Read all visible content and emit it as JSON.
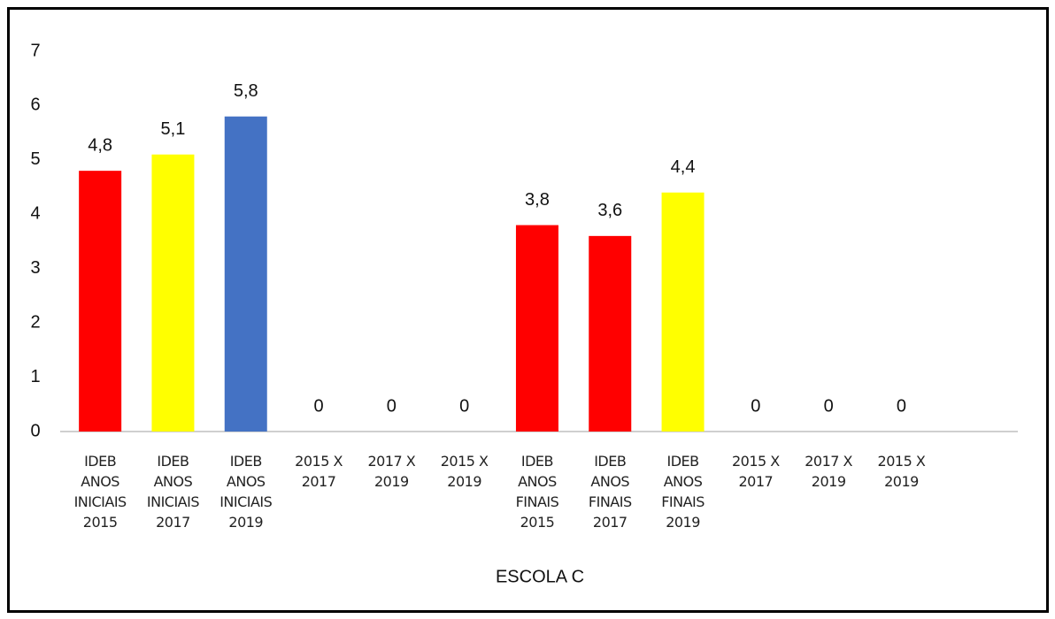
{
  "chart_data": {
    "type": "bar",
    "x_label": "ESCOLA C",
    "categories": [
      "IDEB ANOS INICIAIS 2015",
      "IDEB ANOS INICIAIS 2017",
      "IDEB ANOS INICIAIS 2019",
      "2015 X 2017",
      "2017 X 2019",
      "2015 X 2019",
      "IDEB ANOS FINAIS 2015",
      "IDEB ANOS FINAIS 2017",
      "IDEB ANOS FINAIS 2019",
      "2015 X 2017",
      "2017 X 2019",
      "2015 X 2019"
    ],
    "values": [
      4.8,
      5.1,
      5.8,
      0,
      0,
      0,
      3.8,
      3.6,
      4.4,
      0,
      0,
      0
    ],
    "value_labels": [
      "4,8",
      "5,1",
      "5,8",
      "0",
      "0",
      "0",
      "3,8",
      "3,6",
      "4,4",
      "0",
      "0",
      "0"
    ],
    "colors": [
      "#ff0000",
      "#ffff00",
      "#4472c4",
      null,
      null,
      null,
      "#ff0000",
      "#ff0000",
      "#ffff00",
      null,
      null,
      null
    ],
    "ylim": [
      0,
      7
    ],
    "yticks": [
      0,
      1,
      2,
      3,
      4,
      5,
      6,
      7
    ],
    "grid": false
  }
}
